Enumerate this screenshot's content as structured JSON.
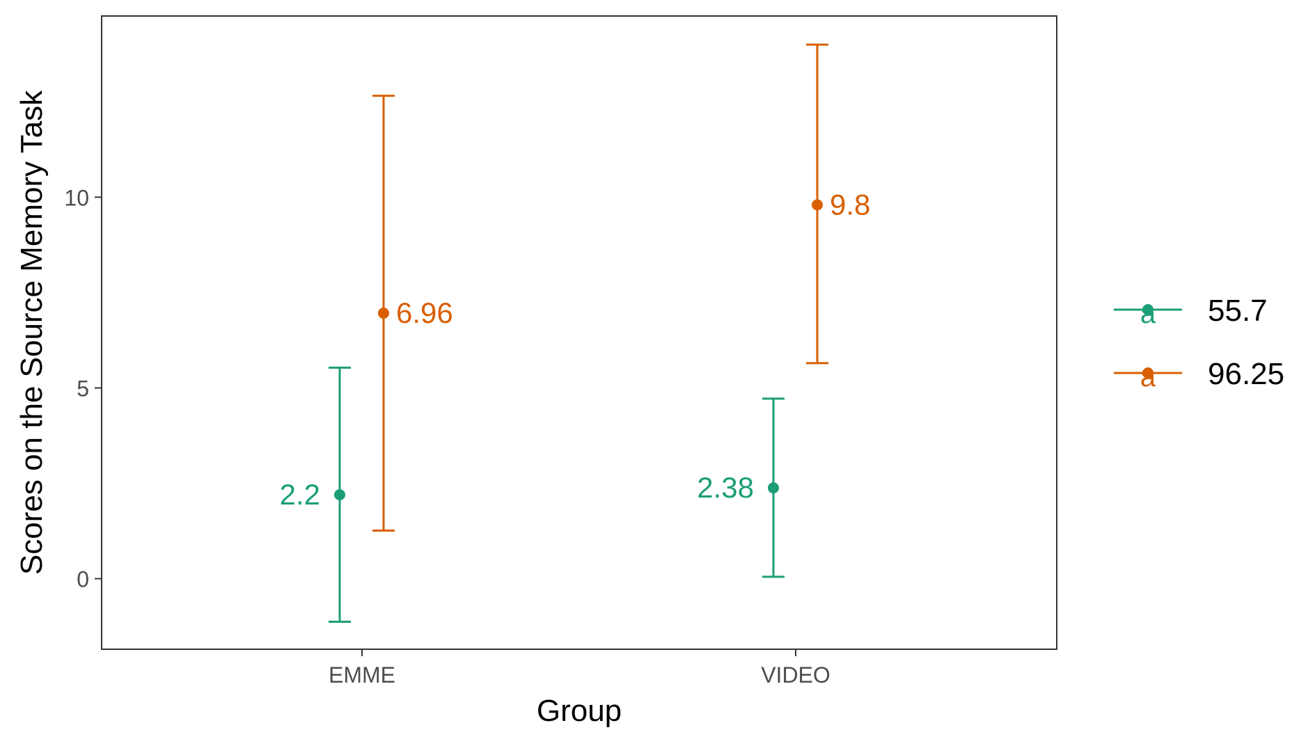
{
  "chart_data": {
    "type": "scatter",
    "subtype": "errorbar",
    "xlabel": "Group",
    "ylabel": "Scores on the Source Memory Task",
    "categories": [
      "EMME",
      "VIDEO"
    ],
    "y_ticks": [
      0,
      5,
      10
    ],
    "y_tick_labels": [
      "0",
      "5",
      "10"
    ],
    "ylim": [
      -1.85,
      14.75
    ],
    "grid": false,
    "legend_position": "right",
    "series": [
      {
        "name": "55.7",
        "color": "#1b9e77",
        "points": [
          {
            "category": "EMME",
            "y": 2.2,
            "lower": -1.13,
            "upper": 5.53,
            "label": "2.2"
          },
          {
            "category": "VIDEO",
            "y": 2.38,
            "lower": 0.05,
            "upper": 4.72,
            "label": "2.38"
          }
        ]
      },
      {
        "name": "96.25",
        "color": "#d95f02",
        "points": [
          {
            "category": "EMME",
            "y": 6.96,
            "lower": 1.26,
            "upper": 12.66,
            "label": "6.96"
          },
          {
            "category": "VIDEO",
            "y": 9.8,
            "lower": 5.65,
            "upper": 14.0,
            "label": "9.8"
          }
        ]
      }
    ],
    "legend_key_glyph": "a"
  }
}
